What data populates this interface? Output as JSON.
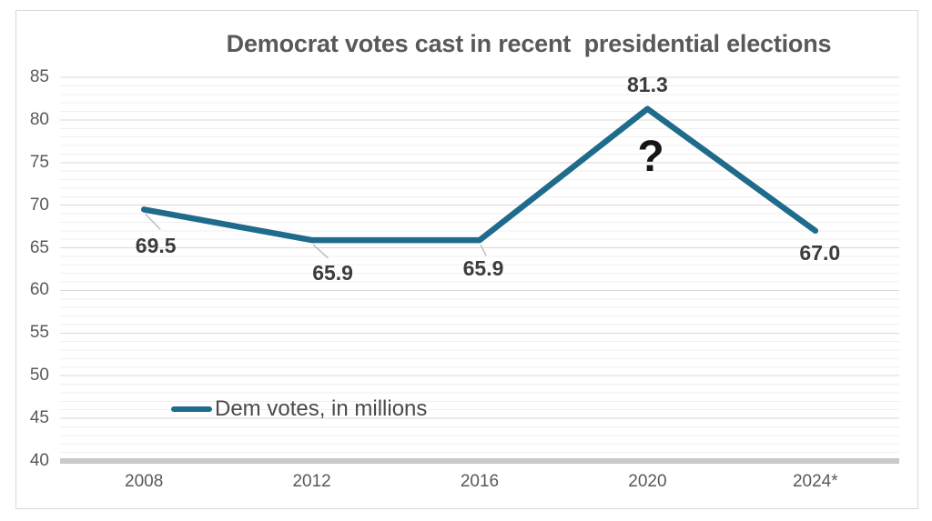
{
  "chart_data": {
    "type": "line",
    "title": "Democrat votes cast in recent  presidential elections",
    "categories": [
      "2008",
      "2012",
      "2016",
      "2020",
      "2024*"
    ],
    "series": [
      {
        "name": "Dem votes, in millions",
        "values": [
          69.5,
          65.9,
          65.9,
          81.3,
          67.0
        ]
      }
    ],
    "data_labels": [
      "69.5",
      "65.9",
      "65.9",
      "81.3",
      "67.0"
    ],
    "annotation": "?",
    "xlabel": "",
    "ylabel": "",
    "ylim": [
      40,
      85
    ],
    "ytick_interval": 5,
    "yticks": [
      85,
      80,
      75,
      70,
      65,
      60,
      55,
      50,
      45,
      40
    ],
    "grid": {
      "major_horizontal": true,
      "minor_horizontal": true,
      "vertical": false
    },
    "legend": {
      "label": "Dem votes, in millions",
      "position": "bottom-left"
    },
    "colors": {
      "line": "#1f6b8c",
      "title": "#595959",
      "axis_text": "#595959",
      "data_label": "#3c3c3c",
      "annotation": "#151515",
      "major_grid": "#d8d8d8",
      "minor_grid": "#efefef",
      "axis_baseline": "#c9c9c9",
      "frame_border": "#d9d9d9",
      "leader_line": "#bdbdbd",
      "background": "#ffffff"
    }
  }
}
